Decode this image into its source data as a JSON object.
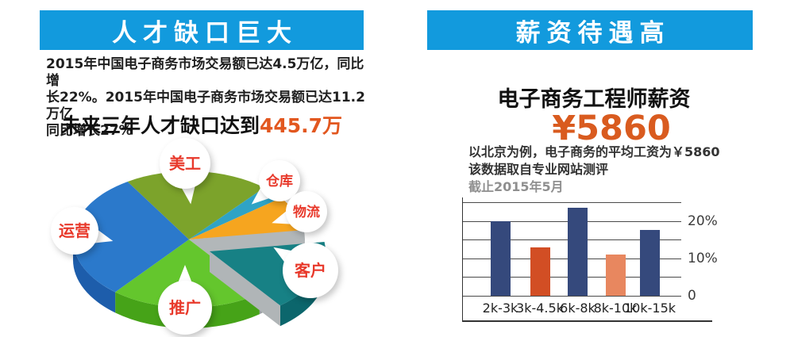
{
  "left_panel": {
    "header": "人才缺口巨大",
    "para_lines": [
      "2015年中国电子商务市场交易额已达4.5万亿，同比增",
      "长22%。2015年中国电子商务市场交易额已达11.2万亿",
      "同比增长27%"
    ],
    "headline_prefix": "未来三年人才缺口达到",
    "headline_number": "445.7万"
  },
  "right_panel": {
    "header": "薪资待遇高",
    "title": "电子商务工程师薪资",
    "salary": "¥5860",
    "note_lines": [
      "以北京为例，电子商务的平均工资为￥5860",
      "该数据取自专业网站测评",
      "截止2015年5月"
    ]
  },
  "colors": {
    "header_blue": "#129add",
    "accent_orange": "#e2571f",
    "salary_orange": "#d95b1f",
    "pie_label_red": "#e8392b",
    "grid_gray": "#4a4a4a"
  },
  "chart_data": [
    {
      "type": "pie",
      "labels": [
        "美工",
        "仓库",
        "物流",
        "客户",
        "推广",
        "运营"
      ],
      "values_pct": [
        20,
        3,
        8,
        17,
        22,
        30
      ],
      "start_angle_deg": -122,
      "sweep_deg": [
        72.5,
        12,
        29.5,
        60.5,
        77,
        108.5
      ],
      "colors": [
        "#7ca32b",
        "#2fa3c5",
        "#f6a51f",
        "#178185",
        "#64c62d",
        "#2b79cb"
      ],
      "side_colors": [
        "#5e7f1c",
        "#1f7f9e",
        "#cc8410",
        "#0c666c",
        "#46a318",
        "#1d5dab"
      ],
      "gap_gray_top": "#b2b7b9",
      "gap_gray_side": "#9aa0a2",
      "exploded_label": "客户",
      "label_color": "#e8392b",
      "style": "3d-exploded-ellipse",
      "legend": "bubble-callouts"
    },
    {
      "type": "bar",
      "categories": [
        "2k-3k",
        "3k-4.5k",
        "6k-8k",
        "8k-10k",
        "10k-15k"
      ],
      "values_pct": [
        20,
        13,
        23.5,
        11,
        17.5
      ],
      "bar_colors": [
        "#35497c",
        "#d24e24",
        "#35497c",
        "#e8875f",
        "#35497c"
      ],
      "ytick_labels": [
        "20%",
        "10%",
        "0"
      ],
      "ytick_values": [
        20,
        10,
        0
      ],
      "ylim": [
        0,
        25
      ],
      "gridline_step_pct": 5,
      "xlabel": "",
      "ylabel": "",
      "grid": "on",
      "yaxis_side": "right"
    }
  ]
}
